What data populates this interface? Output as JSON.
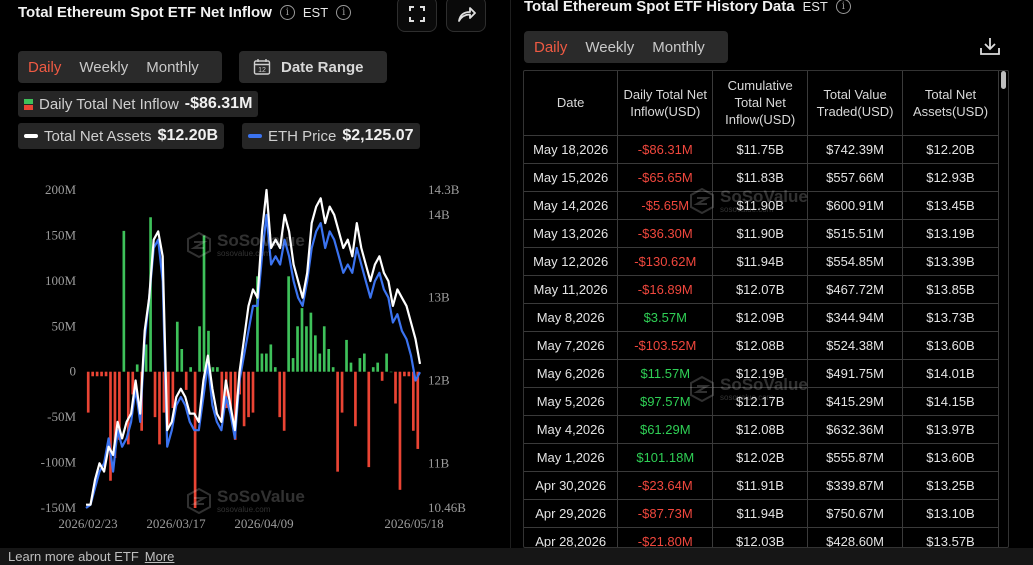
{
  "left": {
    "title": "Total Ethereum Spot ETF Net Inflow",
    "timezone": "EST",
    "tabs": [
      "Daily",
      "Weekly",
      "Monthly"
    ],
    "active_tab": "Daily",
    "date_range_label": "Date Range",
    "legend": {
      "inflow_label": "Daily Total Net Inflow",
      "inflow_value": "-$86.31M",
      "assets_label": "Total Net Assets",
      "assets_value": "$12.20B",
      "price_label": "ETH Price",
      "price_value": "$2,125.07"
    },
    "watermark": "SoSoValue",
    "watermark_sub": "sosovalue.com"
  },
  "right": {
    "title": "Total Ethereum Spot ETF History Data",
    "timezone": "EST",
    "tabs": [
      "Daily",
      "Weekly",
      "Monthly"
    ],
    "active_tab": "Daily",
    "columns": [
      "Date",
      "Daily Total Net Inflow(USD)",
      "Cumulative Total Net Inflow(USD)",
      "Total Value Traded(USD)",
      "Total Net Assets(USD)"
    ],
    "rows": [
      [
        "May 18,2026",
        "-$86.31M",
        "$11.75B",
        "$742.39M",
        "$12.20B"
      ],
      [
        "May 15,2026",
        "-$65.65M",
        "$11.83B",
        "$557.66M",
        "$12.93B"
      ],
      [
        "May 14,2026",
        "-$5.65M",
        "$11.90B",
        "$600.91M",
        "$13.45B"
      ],
      [
        "May 13,2026",
        "-$36.30M",
        "$11.90B",
        "$515.51M",
        "$13.19B"
      ],
      [
        "May 12,2026",
        "-$130.62M",
        "$11.94B",
        "$554.85M",
        "$13.39B"
      ],
      [
        "May 11,2026",
        "-$16.89M",
        "$12.07B",
        "$467.72M",
        "$13.85B"
      ],
      [
        "May 8,2026",
        "$3.57M",
        "$12.09B",
        "$344.94M",
        "$13.73B"
      ],
      [
        "May 7,2026",
        "-$103.52M",
        "$12.08B",
        "$524.38M",
        "$13.60B"
      ],
      [
        "May 6,2026",
        "$11.57M",
        "$12.19B",
        "$491.75M",
        "$14.01B"
      ],
      [
        "May 5,2026",
        "$97.57M",
        "$12.17B",
        "$415.29M",
        "$14.15B"
      ],
      [
        "May 4,2026",
        "$61.29M",
        "$12.08B",
        "$632.36M",
        "$13.97B"
      ],
      [
        "May 1,2026",
        "$101.18M",
        "$12.02B",
        "$555.87M",
        "$13.60B"
      ],
      [
        "Apr 30,2026",
        "-$23.64M",
        "$11.91B",
        "$339.87M",
        "$13.25B"
      ],
      [
        "Apr 29,2026",
        "-$87.73M",
        "$11.94B",
        "$750.67M",
        "$13.10B"
      ],
      [
        "Apr 28,2026",
        "-$21.80M",
        "$12.03B",
        "$428.60M",
        "$13.57B"
      ]
    ]
  },
  "footer": {
    "text": "Learn more about ETF",
    "link": "More"
  },
  "colors": {
    "accent": "#ef5a43",
    "pos": "#3ec15a",
    "neg": "#ea4434",
    "eth_line": "#3b73f0",
    "assets_line": "#ffffff"
  },
  "chart_data": {
    "type": "bar",
    "x_ticks": [
      "2026/02/23",
      "2026/03/17",
      "2026/04/09",
      "2026/05/18"
    ],
    "y_left_ticks": [
      "200M",
      "150M",
      "100M",
      "50M",
      "0",
      "-50M",
      "-100M",
      "-150M"
    ],
    "y_left_range": [
      -150,
      200
    ],
    "y_right_ticks": [
      "14.3B",
      "14B",
      "13B",
      "12B",
      "11B",
      "10.46B"
    ],
    "y_right_range": [
      10.46,
      14.3
    ],
    "series": [
      {
        "name": "Daily Total Net Inflow",
        "unit": "M USD",
        "values": [
          -45,
          -5,
          -5,
          -5,
          -5,
          -120,
          -95,
          -75,
          155,
          -80,
          -25,
          8,
          -65,
          30,
          170,
          -50,
          -80,
          -45,
          -60,
          -40,
          55,
          25,
          -20,
          5,
          -150,
          50,
          150,
          45,
          5,
          5,
          -55,
          -40,
          -45,
          -75,
          -25,
          -60,
          -50,
          -45,
          105,
          20,
          20,
          30,
          5,
          -50,
          -65,
          105,
          15,
          50,
          70,
          50,
          65,
          40,
          20,
          50,
          25,
          5,
          -110,
          -45,
          35,
          10,
          -60,
          15,
          20,
          -105,
          5,
          10,
          -10,
          20,
          0,
          -35,
          -130,
          -5,
          -5,
          -65,
          -85
        ]
      },
      {
        "name": "Total Net Assets",
        "unit": "B USD",
        "values": [
          10.5,
          10.5,
          10.8,
          11.0,
          10.9,
          11.2,
          11.1,
          11.5,
          11.3,
          11.5,
          11.6,
          12.0,
          11.6,
          12.6,
          13.0,
          13.7,
          13.8,
          13.5,
          11.4,
          11.5,
          11.8,
          11.9,
          11.8,
          11.6,
          11.6,
          11.5,
          12.0,
          12.3,
          11.9,
          11.6,
          11.5,
          12.0,
          11.7,
          11.4,
          12.1,
          12.5,
          12.9,
          13.1,
          13.0,
          13.8,
          14.3,
          13.6,
          13.7,
          13.6,
          14.0,
          13.8,
          13.4,
          13.2,
          13.0,
          13.3,
          13.9,
          14.1,
          14.2,
          13.9,
          14.1,
          14.0,
          13.8,
          13.6,
          13.7,
          13.5,
          13.9,
          13.6,
          13.4,
          13.2,
          13.4,
          13.5,
          13.3,
          13.2,
          12.9,
          13.1,
          13.0,
          12.9,
          12.7,
          12.5,
          12.2
        ]
      },
      {
        "name": "ETH Price",
        "unit": "B-equivalent scale",
        "values": [
          10.46,
          10.5,
          10.7,
          10.9,
          11.0,
          11.3,
          10.9,
          11.4,
          11.2,
          11.3,
          11.5,
          11.9,
          11.5,
          12.5,
          13.0,
          13.6,
          13.7,
          13.2,
          11.2,
          11.4,
          11.7,
          11.8,
          11.7,
          11.5,
          11.4,
          11.4,
          11.8,
          12.2,
          11.7,
          11.5,
          11.4,
          11.8,
          11.6,
          11.3,
          12.0,
          12.3,
          12.6,
          12.9,
          12.9,
          13.5,
          14.0,
          13.4,
          13.5,
          13.4,
          13.7,
          13.5,
          13.2,
          13.0,
          12.9,
          13.2,
          13.6,
          13.8,
          13.9,
          13.6,
          13.8,
          13.7,
          13.5,
          13.3,
          13.4,
          13.3,
          13.6,
          13.4,
          13.2,
          13.0,
          13.2,
          13.3,
          13.1,
          13.0,
          12.7,
          12.8,
          12.6,
          12.5,
          12.3,
          12.0,
          12.1
        ]
      }
    ]
  }
}
